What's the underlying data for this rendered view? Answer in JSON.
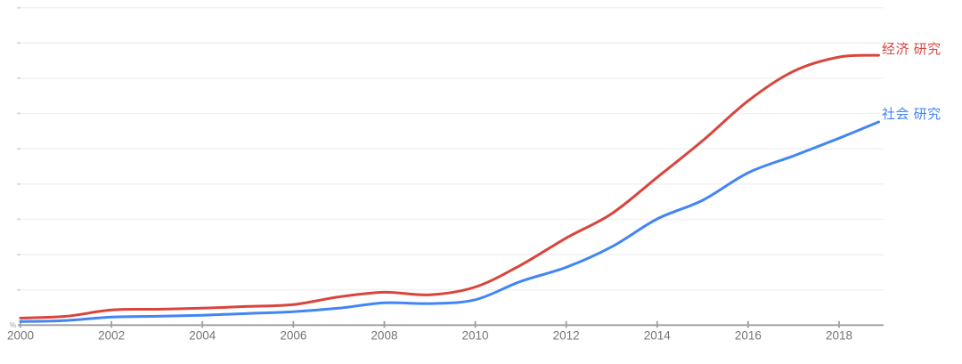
{
  "chart_data": {
    "type": "line",
    "title": "",
    "xlabel": "",
    "ylabel": "",
    "y_axis_symbol": "%",
    "xlim": [
      2000,
      2019
    ],
    "ylim": [
      0,
      9
    ],
    "grid": "horizontal, unlabeled, 9 faint gridlines above baseline",
    "legend_position": "line-end labels, right side",
    "x": [
      2000,
      2001,
      2002,
      2003,
      2004,
      2005,
      2006,
      2007,
      2008,
      2009,
      2010,
      2011,
      2012,
      2013,
      2014,
      2015,
      2016,
      2017,
      2018,
      2019
    ],
    "x_tick_labels": [
      "2000",
      "2002",
      "2004",
      "2006",
      "2008",
      "2010",
      "2012",
      "2014",
      "2016",
      "2018"
    ],
    "series": [
      {
        "name": "经济 研究",
        "color": "#d9453c",
        "values": [
          0.2,
          0.25,
          0.43,
          0.45,
          0.48,
          0.53,
          0.58,
          0.8,
          0.93,
          0.86,
          1.08,
          1.7,
          2.47,
          3.16,
          4.19,
          5.23,
          6.36,
          7.2,
          7.6,
          7.65
        ]
      },
      {
        "name": "社会 研究",
        "color": "#4285f4",
        "values": [
          0.1,
          0.13,
          0.23,
          0.25,
          0.28,
          0.33,
          0.38,
          0.48,
          0.63,
          0.61,
          0.72,
          1.24,
          1.64,
          2.22,
          3.01,
          3.54,
          4.32,
          4.8,
          5.3,
          5.76
        ]
      }
    ]
  },
  "colors": {
    "background": "#ffffff",
    "axis_line": "#9e9e9e",
    "tick_label": "#757575",
    "gridline": "#f1f1f1",
    "gridline_left_tick": "#dcdcdc"
  }
}
